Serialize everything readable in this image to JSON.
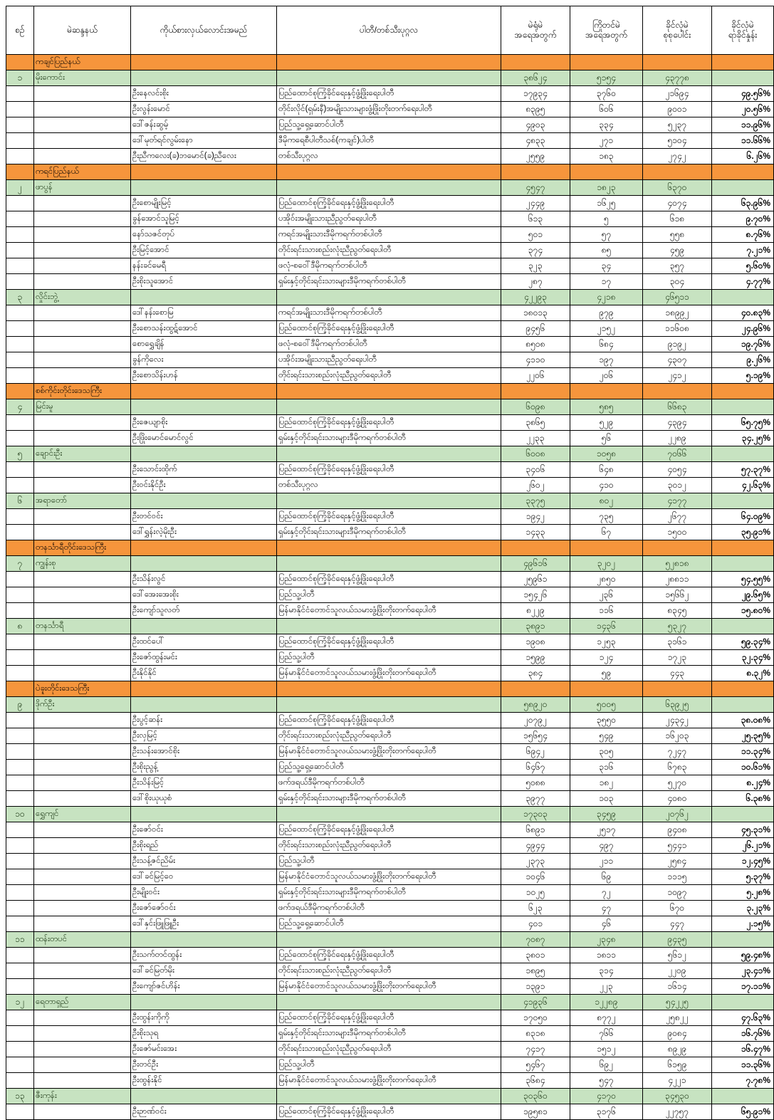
{
  "header": {
    "columns": [
      "စဉ်",
      "မဲဆန္ဒနယ်",
      "ကိုယ်စားလှယ်လောင်းအမည်",
      "ပါတီ/တစ်သီးပုဂ္ဂလ",
      "မဲရုံမဲ\nအရေအတွက်",
      "ကြိုတင်မဲ\nအရေအတွက်",
      "ခိုင်လုံမဲ\nစုစုပေါင်း",
      "ခိုင်လုံမဲ\nရာခိုင်နှုန်း"
    ]
  },
  "colors": {
    "state_row": "#F6953C",
    "constituency_row": "#C7E3C1",
    "grid": "#000000"
  },
  "sections": [
    {
      "state": "ကချင်ပြည်နယ်",
      "constituencies": [
        {
          "no": "၁",
          "name": "မိုးကောင်း",
          "totals": {
            "polling": "၃၈၆၂၄",
            "advance": "၅၁၅၄",
            "valid": "၄၃၇၇၈"
          },
          "candidates": [
            {
              "name": "ဦးနေလင်းစိုး",
              "party": "ပြည်ထောင်စုကြံ့ခိုင်ရေးနှင့်ဖွံ့ဖြိုးရေးပါတီ",
              "polling": "၁၇၉၃၄",
              "advance": "၃၇၆၀",
              "valid": "၂၁၆၉၄",
              "pct": "၄၉.၅၆%"
            },
            {
              "name": "ဦးလွန်းမောင်",
              "party": "တိုင်းလိုင်(ရှမ်းနီ)အမျိုးသားများဖွံ့ဖြိုးတိုးတက်ရေးပါတီ",
              "polling": "၈၃၉၅",
              "advance": "၆၀၆",
              "valid": "၉၀၀၁",
              "pct": "၂၀.၅၆%"
            },
            {
              "name": "ဒေါ်ဇန်းဆွမ့်",
              "party": "ပြည်သူ့ရှေ့ဆောင်ပါတီ",
              "polling": "၄၉၀၃",
              "advance": "၃၃၄",
              "valid": "၅၂၃၇",
              "pct": "၁၁.၉၆%"
            },
            {
              "name": "ဒေါ်မုတ်ရင်လွမ်းနော",
              "party": "ဒီမိုကရေစီပါတီသစ်(ကချင်)ပါတီ",
              "polling": "၄၈၃၃",
              "advance": "၂၇၁",
              "valid": "၅၁၀၄",
              "pct": "၁၁.၆၆%"
            },
            {
              "name": "ဦးညီကလေး(ခ)ဘမောင်(ခ)ညီလေး",
              "party": "တစ်သီးပုဂ္ဂလ",
              "polling": "၂၅၅၉",
              "advance": "၁၈၃",
              "valid": "၂၇၄၂",
              "pct": "၆.၂၆%"
            }
          ]
        }
      ]
    },
    {
      "state": "ကရင်ပြည်နယ်",
      "constituencies": [
        {
          "no": "၂",
          "name": "ဖာပွန်",
          "totals": {
            "polling": "၄၅၄၇",
            "advance": "၁၈၂၃",
            "valid": "၆၃၇၀"
          },
          "candidates": [
            {
              "name": "ဦးစောမျိုးမြင့်",
              "party": "ပြည်ထောင်စုကြံ့ခိုင်ရေးနှင့်ဖွံ့ဖြိုးရေးပါတီ",
              "polling": "၂၄၄၉",
              "advance": "၁၆၂၅",
              "valid": "၄၀၇၄",
              "pct": "၆၃.၉၆%"
            },
            {
              "name": "ခွန်အောင်သူမြင့်",
              "party": "ပအိုဝ်းအမျိုးသားညီညွတ်ရေးပါတီ",
              "polling": "၆၁၃",
              "advance": "၅",
              "valid": "၆၁၈",
              "pct": "၉.၇၀%"
            },
            {
              "name": "နော်သဇင်တုပ်",
              "party": "ကရင်အမျိုးသားဒီမိုကရက်တစ်ပါတီ",
              "polling": "၅၀၁",
              "advance": "၅၇",
              "valid": "၅၅၈",
              "pct": "၈.၇၆%"
            },
            {
              "name": "ဦးမြင့်အောင်",
              "party": "တိုင်းရင်းသားစည်းလုံးညီညွတ်ရေးပါတီ",
              "polling": "၃၇၄",
              "advance": "၈၅",
              "valid": "၄၅၉",
              "pct": "၇.၂၁%"
            },
            {
              "name": "နန်းခင်မေရီ",
              "party": "ဖလုံ-စဝေါ်ဒီမိုကရက်တစ်ပါတီ",
              "polling": "၃၂၃",
              "advance": "၃၄",
              "valid": "၃၅၇",
              "pct": "၅.၆၀%"
            },
            {
              "name": "ဦးစိုးသူအောင်",
              "party": "ရှမ်းနှင့်တိုင်းရင်းသားများဒီမိုကရက်တစ်ပါတီ",
              "polling": "၂၈၇",
              "advance": "၁၇",
              "valid": "၃၀၄",
              "pct": "၄.၇၇%"
            }
          ]
        },
        {
          "no": "၃",
          "name": "လှိုင်းဘွဲ့",
          "totals": {
            "polling": "၄၂၂၉၃",
            "advance": "၄၂၁၈",
            "valid": "၄၆၅၁၁"
          },
          "candidates": [
            {
              "name": "ဒေါ်နန်းစောမြ",
              "party": "ကရင်အမျိုးသားဒီမိုကရက်တစ်ပါတီ",
              "polling": "၁၈၀၁၃",
              "advance": "၉၇၉",
              "valid": "၁၈၉၉၂",
              "pct": "၄၀.၈၃%"
            },
            {
              "name": "ဦးစောသန်းထွဋ်အောင်",
              "party": "ပြည်ထောင်စုကြံ့ခိုင်ရေးနှင့်ဖွံ့ဖြိုးရေးပါတီ",
              "polling": "၉၄၅၆",
              "advance": "၂၁၅၂",
              "valid": "၁၁၆၀၈",
              "pct": "၂၄.၉၆%"
            },
            {
              "name": "စောရွှေချိန်",
              "party": "ဖလုံ-စဝေါ်ဒီမိုကရက်တစ်ပါတီ",
              "polling": "၈၅၀၈",
              "advance": "၆၈၄",
              "valid": "၉၁၉၂",
              "pct": "၁၉.၇၆%"
            },
            {
              "name": "ခွန်ကိုလေး",
              "party": "ပအိုဝ်းအမျိုးသားညီညွတ်ရေးပါတီ",
              "polling": "၄၁၁၀",
              "advance": "၁၉၇",
              "valid": "၄၃၀၇",
              "pct": "၉.၂၆%"
            },
            {
              "name": "ဦးစောသိန်းဟန်",
              "party": "တိုင်းရင်းသားစည်းလုံးညီညွတ်ရေးပါတီ",
              "polling": "၂၂၀၆",
              "advance": "၂၀၆",
              "valid": "၂၄၁၂",
              "pct": "၅.၁၉%"
            }
          ]
        }
      ]
    },
    {
      "state": "စစ်ကိုင်းတိုင်းဒေသကြီး",
      "constituencies": [
        {
          "no": "၄",
          "name": "မြင်းမူ",
          "totals": {
            "polling": "၆၀၉၈",
            "advance": "၅၈၅",
            "valid": "၆၆၈၃"
          },
          "candidates": [
            {
              "name": "ဦးဇေယျာစိုး",
              "party": "ပြည်ထောင်စုကြံ့ခိုင်ရေးနှင့်ဖွံ့ဖြိုးရေးပါတီ",
              "polling": "၃၈၆၅",
              "advance": "၅၂၉",
              "valid": "၄၃၉၄",
              "pct": "၆၅.၇၅%"
            },
            {
              "name": "ဦးဖြိုးမောင်မောင်လွင်",
              "party": "ရှမ်းနှင့်တိုင်းရင်းသားများဒီမိုကရက်တစ်ပါတီ",
              "polling": "၂၂၃၃",
              "advance": "၅၆",
              "valid": "၂၂၈၉",
              "pct": "၃၄.၂၅%"
            }
          ]
        },
        {
          "no": "၅",
          "name": "ချောင်းဦး",
          "totals": {
            "polling": "၆၀၀၈",
            "advance": "၁၀၅၈",
            "valid": "၇၀၆၆"
          },
          "candidates": [
            {
              "name": "ဦးသောင်းထိုက်",
              "party": "ပြည်ထောင်စုကြံ့ခိုင်ရေးနှင့်ဖွံ့ဖြိုးရေးပါတီ",
              "polling": "၃၄၀၆",
              "advance": "၆၄၈",
              "valid": "၄၀၅၄",
              "pct": "၅၇.၃၇%"
            },
            {
              "name": "ဦးဝင်းနိုင်ဦး",
              "party": "တစ်သီးပုဂ္ဂလ",
              "polling": "၂၆၀၂",
              "advance": "၄၁၀",
              "valid": "၃၀၁၂",
              "pct": "၄၂.၆၃%"
            }
          ]
        },
        {
          "no": "၆",
          "name": "အရာတော်",
          "totals": {
            "polling": "၃၃၇၅",
            "advance": "၈၀၂",
            "valid": "၄၁၇၇"
          },
          "candidates": [
            {
              "name": "ဦးတင်ဝင်း",
              "party": "ပြည်ထောင်စုကြံ့ခိုင်ရေးနှင့်ဖွံ့ဖြိုးရေးပါတီ",
              "polling": "၁၉၄၂",
              "advance": "၇၃၅",
              "valid": "၂၆၇၇",
              "pct": "၆၄.၀၉%"
            },
            {
              "name": "ဒေါ်ရွှန်းလဲ့မိုးဦး",
              "party": "ရှမ်းနှင့်တိုင်းရင်းသားများဒီမိုကရက်တစ်ပါတီ",
              "polling": "၁၄၃၃",
              "advance": "၆၇",
              "valid": "၁၅၀၀",
              "pct": "၃၅.၉၁%"
            }
          ]
        }
      ]
    },
    {
      "state": "တနင်္သာရီတိုင်းဒေသကြီး",
      "constituencies": [
        {
          "no": "၇",
          "name": "ကျွန်းစု",
          "totals": {
            "polling": "၄၉၆၁၆",
            "advance": "၃၂၀၂",
            "valid": "၅၂၈၁၈"
          },
          "candidates": [
            {
              "name": "ဦးသိန်းလွင်",
              "party": "ပြည်ထောင်စုကြံ့ခိုင်ရေးနှင့်ဖွံ့ဖြိုးရေးပါတီ",
              "polling": "၂၅၉၆၁",
              "advance": "၂၈၅၀",
              "valid": "၂၈၈၁၁",
              "pct": "၅၄.၅၅%"
            },
            {
              "name": "ဒေါ်အေးအေးစိုး",
              "party": "ပြည်သူ့ပါတီ",
              "polling": "၁၅၄၂၆",
              "advance": "၂၃၆",
              "valid": "၁၅၆၆၂",
              "pct": "၂၉.၆၅%"
            },
            {
              "name": "ဦးကျော်သူလတ်",
              "party": "မြန်မာနိုင်ငံတောင်သူလယ်သမားဖွံ့ဖြိုးတိုးတက်ရေးပါတီ",
              "polling": "၈၂၂၉",
              "advance": "၁၁၆",
              "valid": "၈၃၄၅",
              "pct": "၁၅.၈၀%"
            }
          ]
        },
        {
          "no": "၈",
          "name": "တနင်္သာရီ",
          "totals": {
            "polling": "၃၈၉၁",
            "advance": "၁၄၃၆",
            "valid": "၅၃၂၇"
          },
          "candidates": [
            {
              "name": "ဦးထင်ပေါ်",
              "party": "ပြည်ထောင်စုကြံ့ခိုင်ရေးနှင့်ဖွံ့ဖြိုးရေးပါတီ",
              "polling": "၁၉၀၈",
              "advance": "၁၂၅၃",
              "valid": "၃၁၆၁",
              "pct": "၅၉.၃၄%"
            },
            {
              "name": "ဦးဇော်ထွန်းမင်း",
              "party": "ပြည်သူ့ပါတီ",
              "polling": "၁၅၉၉",
              "advance": "၁၂၄",
              "valid": "၁၇၂၃",
              "pct": "၃၂.၃၄%"
            },
            {
              "name": "ဦးနိုင်နိုင်",
              "party": "မြန်မာနိုင်ငံတောင်သူလယ်သမားဖွံ့ဖြိုးတိုးတက်ရေးပါတီ",
              "polling": "၃၈၄",
              "advance": "၅၉",
              "valid": "၄၄၃",
              "pct": "၈.၃၂%"
            }
          ]
        }
      ]
    },
    {
      "state": "ပဲခူးတိုင်းဒေသကြီး",
      "constituencies": [
        {
          "no": "၉",
          "name": "ဒိုက်ဦး",
          "totals": {
            "polling": "၅၈၉၂၀",
            "advance": "၅၀၀၅",
            "valid": "၆၃၉၂၅"
          },
          "candidates": [
            {
              "name": "ဦးပွင့်ဆန်း",
              "party": "ပြည်ထောင်စုကြံ့ခိုင်ရေးနှင့်ဖွံ့ဖြိုးရေးပါတီ",
              "polling": "၂၀၇၉၂",
              "advance": "၃၅၅၀",
              "valid": "၂၄၃၄၂",
              "pct": "၃၈.၀၈%"
            },
            {
              "name": "ဦးလှမြင့်",
              "party": "တိုင်းရင်းသားစည်းလုံးညီညွတ်ရေးပါတီ",
              "polling": "၁၅၆၅၄",
              "advance": "၅၄၉",
              "valid": "၁၆၂၀၃",
              "pct": "၂၅.၃၅%"
            },
            {
              "name": "ဦးသန်းအောင်စိုး",
              "party": "မြန်မာနိုင်ငံတောင်သူလယ်သမားဖွံ့ဖြိုးတိုးတက်ရေးပါတီ",
              "polling": "၆၉၄၂",
              "advance": "၃၀၅",
              "valid": "၇၂၄၇",
              "pct": "၁၁.၃၄%"
            },
            {
              "name": "ဦးစိုးညွန့်",
              "party": "ပြည်သူ့ရှေ့ဆောင်ပါတီ",
              "polling": "၆၄၆၇",
              "advance": "၃၁၆",
              "valid": "၆၇၈၃",
              "pct": "၁၀.၆၁%"
            },
            {
              "name": "ဦးသိန်းမြင့်",
              "party": "ဖက်ဒရယ်ဒီမိုကရက်တစ်ပါတီ",
              "polling": "၅၀၈၈",
              "advance": "၁၈၂",
              "valid": "၅၂၇၀",
              "pct": "၈.၂၄%"
            },
            {
              "name": "ဒေါ်စိုးယုယုစံ",
              "party": "ရှမ်းနှင့်တိုင်းရင်းသားများဒီမိုကရက်တစ်ပါတီ",
              "polling": "၃၉၇၇",
              "advance": "၁၀၃",
              "valid": "၄၀၈၀",
              "pct": "၆.၃၈%"
            }
          ]
        },
        {
          "no": "၁၀",
          "name": "ရွှေကျင်",
          "totals": {
            "polling": "၁၇၃၀၃",
            "advance": "၃၄၅၉",
            "valid": "၂၀၇၆၂"
          },
          "candidates": [
            {
              "name": "ဦးဇော်ဝင်း",
              "party": "ပြည်ထောင်စုကြံ့ခိုင်ရေးနှင့်ဖွံ့ဖြိုးရေးပါတီ",
              "polling": "၆၈၉၁",
              "advance": "၂၅၁၇",
              "valid": "၉၄၀၈",
              "pct": "၄၅.၃၁%"
            },
            {
              "name": "ဦးစိုးရည်",
              "party": "တိုင်းရင်းသားစည်းလုံးညီညွတ်ရေးပါတီ",
              "polling": "၄၉၄၄",
              "advance": "၄၉၇",
              "valid": "၅၄၄၁",
              "pct": "၂၆.၂၁%"
            },
            {
              "name": "ဦးသန့်ဇင်ညိမ်း",
              "party": "ပြည်သူ့ပါတီ",
              "polling": "၂၃၇၃",
              "advance": "၂၁၁",
              "valid": "၂၅၈၄",
              "pct": "၁၂.၄၅%"
            },
            {
              "name": "ဒေါ်ခင်မြင့်ဝေ",
              "party": "မြန်မာနိုင်ငံတောင်သူလယ်သမားဖွံ့ဖြိုးတိုးတက်ရေးပါတီ",
              "polling": "၁၀၄၆",
              "advance": "၆၉",
              "valid": "၁၁၁၅",
              "pct": "၅.၃၇%"
            },
            {
              "name": "ဦးမျိုးဝင်း",
              "party": "ရှမ်းနှင့်တိုင်းရင်းသားများဒီမိုကရက်တစ်ပါတီ",
              "polling": "၁၀၂၅",
              "advance": "၇၂",
              "valid": "၁၀၉၇",
              "pct": "၅.၂၈%"
            },
            {
              "name": "ဦးဇော်ဇော်ဝင်း",
              "party": "ဖက်ဒရယ်ဒီမိုကရက်တစ်ပါတီ",
              "polling": "၆၂၃",
              "advance": "၄၇",
              "valid": "၆၇၀",
              "pct": "၃.၂၃%"
            },
            {
              "name": "ဒေါ်နှင်းဖြူဖြူဦး",
              "party": "ပြည်သူ့ရှေ့ဆောင်ပါတီ",
              "polling": "၄၀၁",
              "advance": "၄၆",
              "valid": "၄၄၇",
              "pct": "၂.၁၅%"
            }
          ]
        },
        {
          "no": "၁၁",
          "name": "ထန်းတပင်",
          "totals": {
            "polling": "၇၀၈၇",
            "advance": "၂၃၄၈",
            "valid": "၉၄၃၅"
          },
          "candidates": [
            {
              "name": "ဦးသက်တင်ထွန်း",
              "party": "ပြည်ထောင်စုကြံ့ခိုင်ရေးနှင့်ဖွံ့ဖြိုးရေးပါတီ",
              "polling": "၃၈၀၁",
              "advance": "၁၈၁၁",
              "valid": "၅၆၁၂",
              "pct": "၅၉.၄၈%"
            },
            {
              "name": "ဒေါ်ခင်မြတ်မိုး",
              "party": "တိုင်းရင်းသားစည်းလုံးညီညွတ်ရေးပါတီ",
              "polling": "၁၈၉၅",
              "advance": "၃၁၄",
              "valid": "၂၂၀၉",
              "pct": "၂၃.၄၁%"
            },
            {
              "name": "ဦးကျော်ဇင်ဟိန်း",
              "party": "မြန်မာနိုင်ငံတောင်သူလယ်သမားဖွံ့ဖြိုးတိုးတက်ရေးပါတီ",
              "polling": "၁၃၉၁",
              "advance": "၂၂၃",
              "valid": "၁၆၁၄",
              "pct": "၁၇.၁၁%"
            }
          ]
        },
        {
          "no": "၁၂",
          "name": "ရေတာရှည်",
          "totals": {
            "polling": "၄၁၉၃၆",
            "advance": "၁၂၂၈၉",
            "valid": "၅၄၂၂၅"
          },
          "candidates": [
            {
              "name": "ဦးထွန်းကိုကို",
              "party": "ပြည်ထောင်စုကြံ့ခိုင်ရေးနှင့်ဖွံ့ဖြိုးရေးပါတီ",
              "polling": "၁၇၀၅၀",
              "advance": "၈၇၇၂",
              "valid": "၂၅၈၂၂",
              "pct": "၄၇.၆၃%"
            },
            {
              "name": "ဦးစိုးသုရ",
              "party": "ရှမ်းနှင့်တိုင်းရင်းသားများဒီမိုကရက်တစ်ပါတီ",
              "polling": "၈၃၁၈",
              "advance": "၇၆၆",
              "valid": "၉၀၈၄",
              "pct": "၁၆.၇၆%"
            },
            {
              "name": "ဦးဇော်မင်းအေး",
              "party": "တိုင်းရင်းသားစည်းလုံးညီညွတ်ရေးပါတီ",
              "polling": "၇၄၁၇",
              "advance": "၁၅၁၂",
              "valid": "၈၉၂၉",
              "pct": "၁၆.၄၇%"
            },
            {
              "name": "ဦးတင်ဦး",
              "party": "ပြည်သူ့ပါတီ",
              "polling": "၅၄၆၇",
              "advance": "၆၉၂",
              "valid": "၆၁၅၉",
              "pct": "၁၁.၃၆%"
            },
            {
              "name": "ဦးထွန်းနိုင်",
              "party": "မြန်မာနိုင်ငံတောင်သူလယ်သမားဖွံ့ဖြိုးတိုးတက်ရေးပါတီ",
              "polling": "၃၆၈၄",
              "advance": "၅၄၇",
              "valid": "၄၂၂၁",
              "pct": "၇.၇၈%"
            }
          ]
        },
        {
          "no": "၁၃",
          "name": "ဇီးကုန်း",
          "totals": {
            "polling": "၃၀၃၆၀",
            "advance": "၄၁၇၀",
            "valid": "၃၄၅၃၀"
          },
          "candidates": [
            {
              "name": "ဦးဉာဏ်ဝင်း",
              "party": "ပြည်ထောင်စုကြံ့ခိုင်ရေးနှင့်ဖွံ့ဖြိုးရေးပါတီ",
              "polling": "၁၉၅၈၁",
              "advance": "၃၁၇၆",
              "valid": "၂၂၇၅၇",
              "pct": "၆၅.၉၁%"
            }
          ]
        }
      ]
    }
  ]
}
